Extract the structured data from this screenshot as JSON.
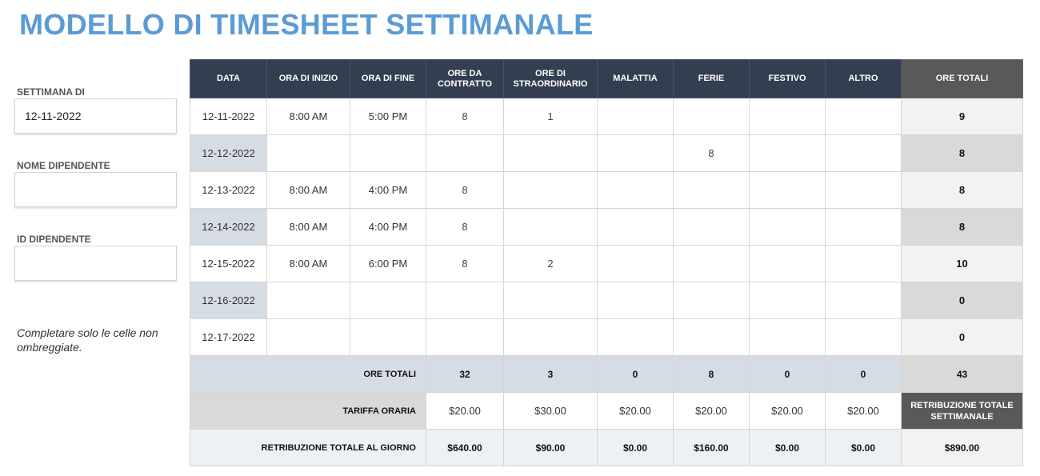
{
  "title": "MODELLO DI TIMESHEET SETTIMANALE",
  "fields": {
    "week_label": "SETTIMANA DI",
    "week_value": "12-11-2022",
    "employee_name_label": "NOME DIPENDENTE",
    "employee_name_value": "",
    "employee_id_label": "ID DIPENDENTE",
    "employee_id_value": ""
  },
  "note": "Completare solo le celle non ombreggiate.",
  "table": {
    "headers": [
      "DATA",
      "ORA DI INIZIO",
      "ORA DI FINE",
      "ORE DA CONTRATTO",
      "ORE DI STRAORDINARIO",
      "MALATTIA",
      "FERIE",
      "FESTIVO",
      "ALTRO",
      "ORE TOTALI"
    ],
    "rows": [
      [
        "12-11-2022",
        "8:00 AM",
        "5:00 PM",
        "8",
        "1",
        "",
        "",
        "",
        "",
        "9"
      ],
      [
        "12-12-2022",
        "",
        "",
        "",
        "",
        "",
        "8",
        "",
        "",
        "8"
      ],
      [
        "12-13-2022",
        "8:00 AM",
        "4:00 PM",
        "8",
        "",
        "",
        "",
        "",
        "",
        "8"
      ],
      [
        "12-14-2022",
        "8:00 AM",
        "4:00 PM",
        "8",
        "",
        "",
        "",
        "",
        "",
        "8"
      ],
      [
        "12-15-2022",
        "8:00 AM",
        "6:00 PM",
        "8",
        "2",
        "",
        "",
        "",
        "",
        "10"
      ],
      [
        "12-16-2022",
        "",
        "",
        "",
        "",
        "",
        "",
        "",
        "",
        "0"
      ],
      [
        "12-17-2022",
        "",
        "",
        "",
        "",
        "",
        "",
        "",
        "",
        "0"
      ]
    ],
    "totals": {
      "label": "ORE TOTALI",
      "values": [
        "32",
        "3",
        "0",
        "8",
        "0",
        "0"
      ],
      "grand": "43"
    },
    "rates": {
      "label": "TARIFFA ORARIA",
      "values": [
        "$20.00",
        "$30.00",
        "$20.00",
        "$20.00",
        "$20.00",
        "$20.00"
      ],
      "weekly_label": "RETRIBUZIONE TOTALE SETTIMANALE"
    },
    "pay": {
      "label": "RETRIBUZIONE TOTALE AL GIORNO",
      "values": [
        "$640.00",
        "$90.00",
        "$0.00",
        "$160.00",
        "$0.00",
        "$0.00"
      ],
      "grand": "$890.00"
    }
  }
}
